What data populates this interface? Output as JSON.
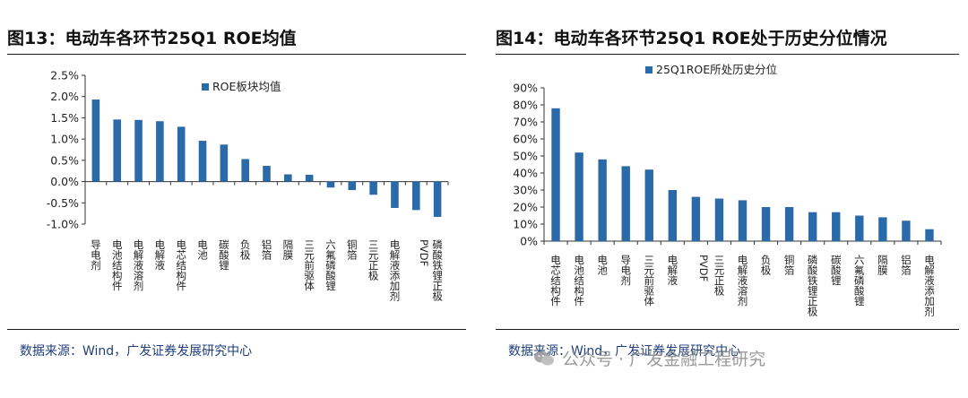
{
  "left": {
    "title": "图13：电动车各环节25Q1 ROE均值",
    "source": "数据来源：Wind，广发证券发展研究中心"
  },
  "right": {
    "title": "图14：电动车各环节25Q1 ROE处于历史分位情况",
    "source": "数据来源：Wind，广发证券发展研究中心"
  },
  "watermark": "公众号 · 广发金融工程研究",
  "colors": {
    "bar": "#2b6aa8",
    "axis": "#333333",
    "text": "#222222"
  },
  "chart_data": [
    {
      "type": "bar",
      "title": "",
      "legend": "ROE板块均值",
      "legend_position": "top-right",
      "grid": false,
      "categories": [
        "导电剂",
        "电池结构件",
        "电解液溶剂",
        "电解液",
        "电芯结构件",
        "电池",
        "碳酸锂",
        "负极",
        "铝箔",
        "隔膜",
        "三元前驱体",
        "六氟磷酸锂",
        "铜箔",
        "三元正极",
        "电解液添加剂",
        "PVDF",
        "磷酸铁锂正极"
      ],
      "values": [
        1.93,
        1.46,
        1.45,
        1.42,
        1.29,
        0.96,
        0.87,
        0.53,
        0.37,
        0.17,
        0.16,
        -0.14,
        -0.2,
        -0.31,
        -0.62,
        -0.67,
        -0.83
      ],
      "ylim": [
        -1.0,
        2.5
      ],
      "yticks": [
        "-1.0%",
        "-0.5%",
        "0.0%",
        "0.5%",
        "1.0%",
        "1.5%",
        "2.0%",
        "2.5%"
      ],
      "unit": "%"
    },
    {
      "type": "bar",
      "title": "",
      "legend": "25Q1ROE所处历史分位",
      "legend_position": "top",
      "grid": false,
      "categories": [
        "电芯结构件",
        "电池结构件",
        "电池",
        "导电剂",
        "三元前驱体",
        "电解液",
        "PVDF",
        "三元正极",
        "电解液溶剂",
        "负极",
        "铜箔",
        "磷酸铁锂正极",
        "碳酸锂",
        "六氟磷酸锂",
        "隔膜",
        "铝箔",
        "电解液添加剂"
      ],
      "values": [
        78,
        52,
        48,
        44,
        42,
        30,
        26,
        25,
        24,
        20,
        20,
        17,
        17,
        15,
        14,
        12,
        7
      ],
      "ylim": [
        0,
        90
      ],
      "yticks": [
        "0%",
        "10%",
        "20%",
        "30%",
        "40%",
        "50%",
        "60%",
        "70%",
        "80%",
        "90%"
      ],
      "unit": "%"
    }
  ]
}
